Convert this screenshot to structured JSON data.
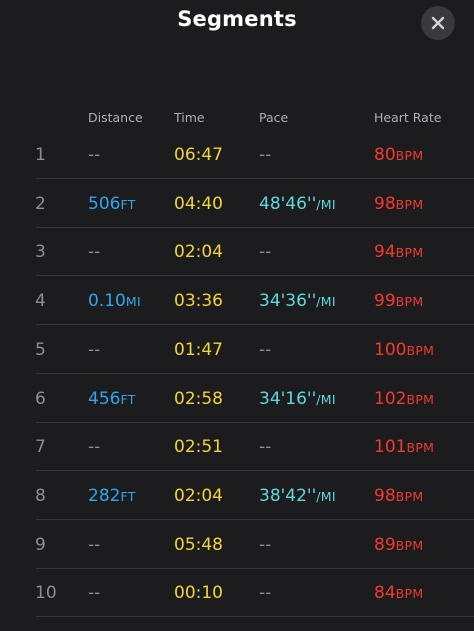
{
  "header": {
    "title": "Segments",
    "close_icon": "close-icon"
  },
  "columns": {
    "distance": "Distance",
    "time": "Time",
    "pace": "Pace",
    "heart_rate": "Heart Rate"
  },
  "colors": {
    "background": "#1c1c1e",
    "distance": "#2fa6e8",
    "time": "#f2d33b",
    "pace": "#5ed9dd",
    "heart_rate": "#f03a2e",
    "muted": "#8e8e93"
  },
  "rows": [
    {
      "index": "1",
      "distance": "--",
      "distance_unit": "",
      "time": "06:47",
      "pace": "--",
      "pace_unit": "",
      "hr": "80",
      "hr_unit": "BPM"
    },
    {
      "index": "2",
      "distance": "506",
      "distance_unit": "FT",
      "time": "04:40",
      "pace": "48'46''",
      "pace_unit": "/MI",
      "hr": "98",
      "hr_unit": "BPM"
    },
    {
      "index": "3",
      "distance": "--",
      "distance_unit": "",
      "time": "02:04",
      "pace": "--",
      "pace_unit": "",
      "hr": "94",
      "hr_unit": "BPM"
    },
    {
      "index": "4",
      "distance": "0.10",
      "distance_unit": "MI",
      "time": "03:36",
      "pace": "34'36''",
      "pace_unit": "/MI",
      "hr": "99",
      "hr_unit": "BPM"
    },
    {
      "index": "5",
      "distance": "--",
      "distance_unit": "",
      "time": "01:47",
      "pace": "--",
      "pace_unit": "",
      "hr": "100",
      "hr_unit": "BPM"
    },
    {
      "index": "6",
      "distance": "456",
      "distance_unit": "FT",
      "time": "02:58",
      "pace": "34'16''",
      "pace_unit": "/MI",
      "hr": "102",
      "hr_unit": "BPM"
    },
    {
      "index": "7",
      "distance": "--",
      "distance_unit": "",
      "time": "02:51",
      "pace": "--",
      "pace_unit": "",
      "hr": "101",
      "hr_unit": "BPM"
    },
    {
      "index": "8",
      "distance": "282",
      "distance_unit": "FT",
      "time": "02:04",
      "pace": "38'42''",
      "pace_unit": "/MI",
      "hr": "98",
      "hr_unit": "BPM"
    },
    {
      "index": "9",
      "distance": "--",
      "distance_unit": "",
      "time": "05:48",
      "pace": "--",
      "pace_unit": "",
      "hr": "89",
      "hr_unit": "BPM"
    },
    {
      "index": "10",
      "distance": "--",
      "distance_unit": "",
      "time": "00:10",
      "pace": "--",
      "pace_unit": "",
      "hr": "84",
      "hr_unit": "BPM"
    }
  ]
}
